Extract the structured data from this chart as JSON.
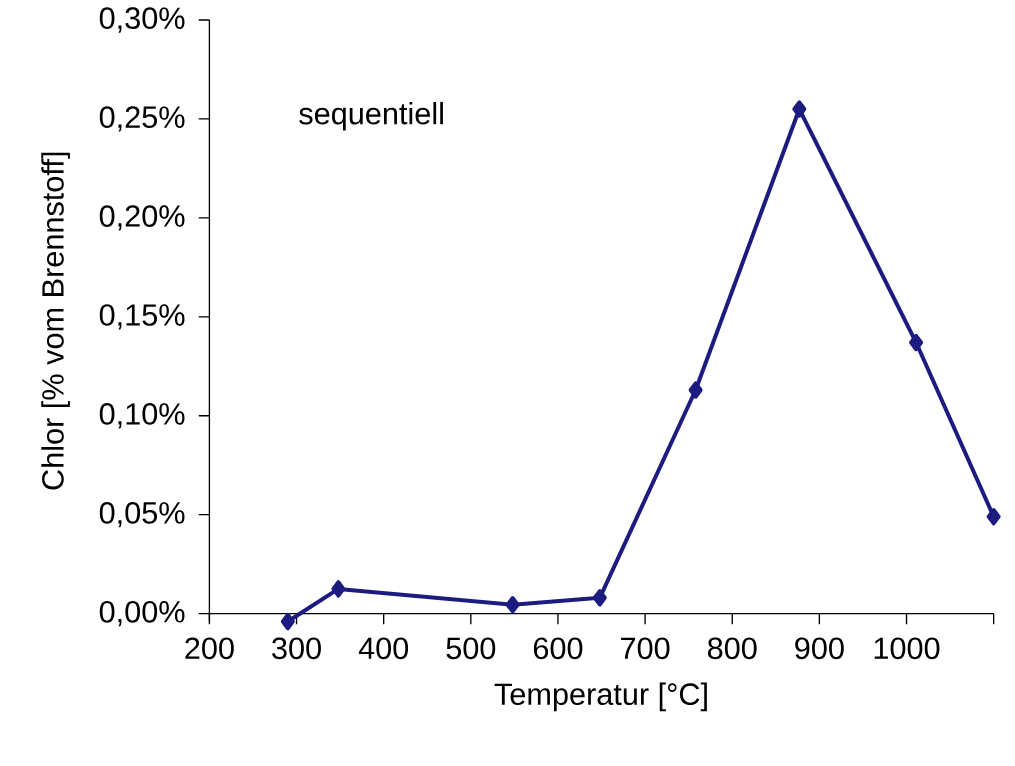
{
  "chart_data": {
    "type": "line",
    "xlabel": "Temperatur [°C]",
    "ylabel": "Chlor [% vom Brennstoff]",
    "annotations": [
      "sequentiell"
    ],
    "x": [
      290,
      348,
      548,
      648,
      758,
      877,
      1011,
      1100
    ],
    "series": [
      {
        "color": "#1c1c80",
        "values": [
          -0.004,
          0.0125,
          0.0045,
          0.008,
          0.113,
          0.255,
          0.137,
          0.049
        ]
      }
    ],
    "xlim": [
      200,
      1100
    ],
    "ylim": [
      -0.004,
      0.3
    ],
    "xticks": [
      200,
      300,
      400,
      500,
      600,
      700,
      800,
      900,
      1000,
      {
        "value": 1100,
        "label": null
      }
    ],
    "yticks": [
      {
        "value": 0,
        "label": "0,00%"
      },
      {
        "value": 0.05,
        "label": "0,05%"
      },
      {
        "value": 0.1,
        "label": "0,10%"
      },
      {
        "value": 0.15,
        "label": "0,15%"
      },
      {
        "value": 0.2,
        "label": "0,20%"
      },
      {
        "value": 0.25,
        "label": "0,25%"
      },
      {
        "value": 0.3,
        "label": "0,30%"
      }
    ],
    "marker": "diamond",
    "line_style": "solid",
    "grid": false
  }
}
